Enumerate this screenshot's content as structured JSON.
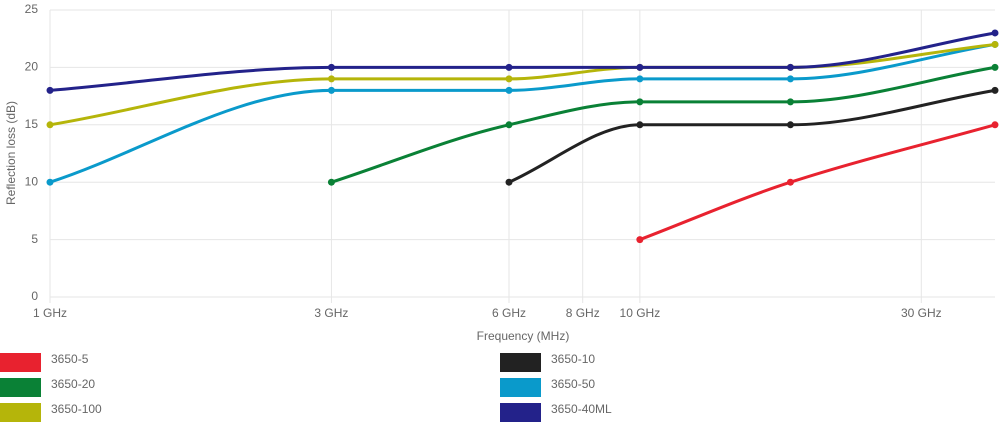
{
  "chart_data": {
    "type": "line",
    "x_label": "Frequency (MHz)",
    "y_label": "Reflection loss (dB)",
    "x": [
      1000,
      3000,
      6000,
      10000,
      18000,
      40000
    ],
    "xlim": [
      1000,
      40000
    ],
    "xscale": "log",
    "xticks": [
      {
        "value": 1000,
        "label": "1 GHz"
      },
      {
        "value": 3000,
        "label": "3 GHz"
      },
      {
        "value": 6000,
        "label": "6 GHz"
      },
      {
        "value": 8000,
        "label": "8 GHz"
      },
      {
        "value": 10000,
        "label": "10 GHz"
      },
      {
        "value": 30000,
        "label": "30 GHz"
      }
    ],
    "ylim": [
      0,
      25
    ],
    "yticks": [
      0,
      5,
      10,
      15,
      20,
      25
    ],
    "grid": true,
    "legend": "bottom",
    "series": [
      {
        "name": "3650-5",
        "color": "#e8222f",
        "values": [
          null,
          null,
          null,
          5,
          10,
          15
        ]
      },
      {
        "name": "3650-10",
        "color": "#222222",
        "values": [
          null,
          null,
          10,
          15,
          15,
          18
        ]
      },
      {
        "name": "3650-20",
        "color": "#0a8136",
        "values": [
          null,
          10,
          15,
          17,
          17,
          20
        ]
      },
      {
        "name": "3650-50",
        "color": "#0a9acb",
        "values": [
          10,
          18,
          18,
          19,
          19,
          22
        ]
      },
      {
        "name": "3650-100",
        "color": "#b5b50a",
        "values": [
          15,
          19,
          19,
          20,
          20,
          22
        ]
      },
      {
        "name": "3650-40ML",
        "color": "#23228a",
        "values": [
          18,
          20,
          20,
          20,
          20,
          23
        ]
      }
    ]
  }
}
